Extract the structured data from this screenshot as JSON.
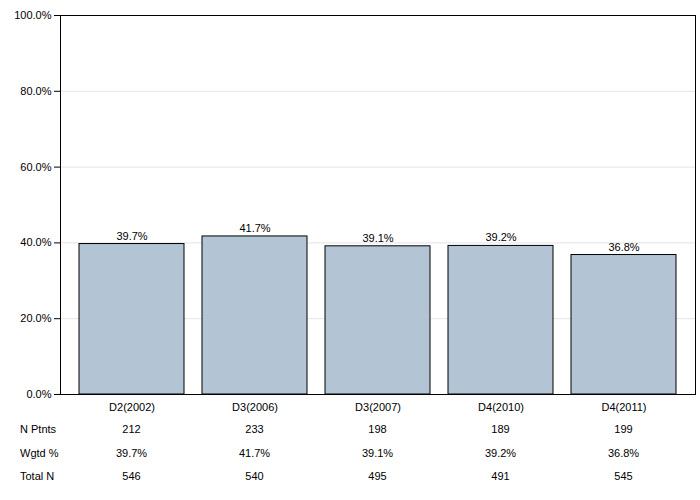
{
  "chart_data": {
    "type": "bar",
    "categories": [
      "D2(2002)",
      "D3(2006)",
      "D3(2007)",
      "D4(2010)",
      "D4(2011)"
    ],
    "values": [
      39.7,
      41.7,
      39.1,
      39.2,
      36.8
    ],
    "value_labels": [
      "39.7%",
      "41.7%",
      "39.1%",
      "39.2%",
      "36.8%"
    ],
    "data_labels": true,
    "color": "#b3c5d5",
    "ylim": [
      0,
      100
    ],
    "yticks": [
      {
        "value": 0,
        "label": "0.0%"
      },
      {
        "value": 20,
        "label": "20.0%"
      },
      {
        "value": 40,
        "label": "40.0%"
      },
      {
        "value": 60,
        "label": "60.0%"
      },
      {
        "value": 80,
        "label": "80.0%"
      },
      {
        "value": 100,
        "label": "100.0%"
      }
    ],
    "grid": true,
    "table_rows": [
      {
        "label": "N Ptnts",
        "values": [
          212,
          233,
          198,
          189,
          199
        ]
      },
      {
        "label": "Wgtd %",
        "values": [
          39.7,
          41.7,
          39.1,
          39.2,
          36.8
        ],
        "value_labels": [
          "39.7%",
          "41.7%",
          "39.1%",
          "39.2%",
          "36.8%"
        ]
      },
      {
        "label": "Total N",
        "values": [
          546,
          540,
          495,
          491,
          545
        ]
      }
    ]
  }
}
